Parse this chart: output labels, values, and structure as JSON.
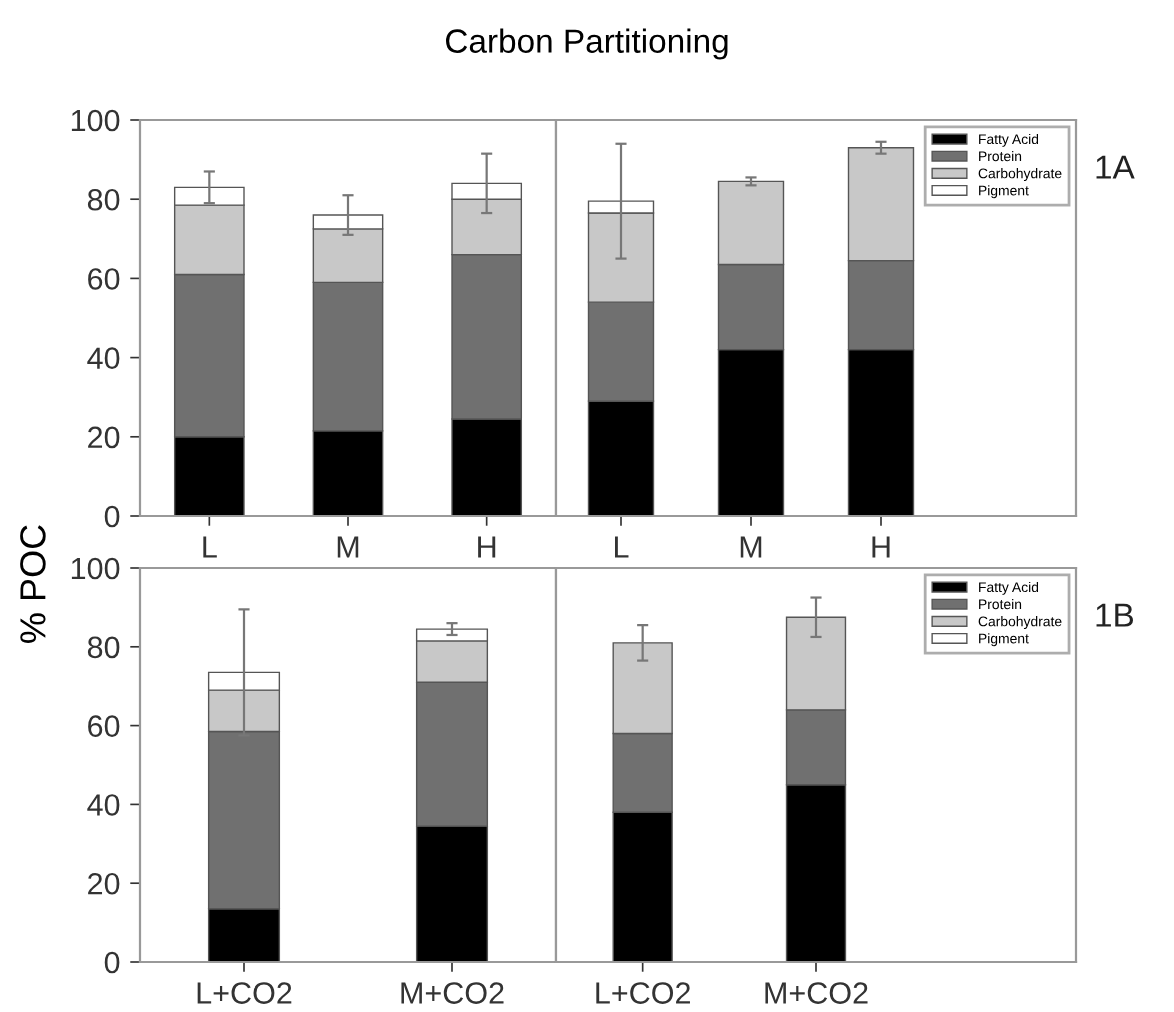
{
  "chart_data": [
    {
      "type": "bar",
      "stacked": true,
      "title": "Carbon Partitioning",
      "ylabel": "% POC",
      "categories": [
        "L",
        "M",
        "H"
      ],
      "ylim": [
        0,
        100
      ],
      "yticks": [
        0,
        20,
        40,
        60,
        80,
        100
      ],
      "grid": false,
      "legend": false,
      "series": [
        {
          "color": "#000000",
          "values": [
            20,
            21.5,
            24.5
          ]
        },
        {
          "color": "#707070",
          "values": [
            41,
            37.5,
            41.5
          ]
        },
        {
          "color": "#c8c8c8",
          "values": [
            17.5,
            13.5,
            14
          ]
        },
        {
          "color": "#ffffff",
          "values": [
            4.5,
            3.5,
            4
          ],
          "errors": [
            4,
            5,
            7.5
          ]
        }
      ]
    },
    {
      "type": "bar",
      "stacked": true,
      "categories": [
        "L",
        "M",
        "H"
      ],
      "ylim": [
        0,
        100
      ],
      "tick_labels": "x",
      "grid": false,
      "legend": "top right",
      "annotations": [
        "1A"
      ],
      "series": [
        {
          "name": "Fatty Acid",
          "color": "#000000",
          "values": [
            29,
            42,
            42
          ]
        },
        {
          "name": "Protein",
          "color": "#707070",
          "values": [
            25,
            21.5,
            22.5
          ]
        },
        {
          "name": "Carbohydrate",
          "color": "#c8c8c8",
          "values": [
            22.5,
            21,
            28.5
          ],
          "errors": [
            null,
            1,
            1.5
          ]
        },
        {
          "name": "Pigment",
          "color": "#ffffff",
          "values": [
            3,
            null,
            null
          ],
          "errors": [
            14.5,
            null,
            null
          ]
        }
      ]
    },
    {
      "type": "bar",
      "stacked": true,
      "categories": [
        "L+CO2",
        "M+CO2"
      ],
      "ylim": [
        0,
        100
      ],
      "yticks": [
        0,
        20,
        40,
        60,
        80,
        100
      ],
      "grid": false,
      "legend": false,
      "series": [
        {
          "color": "#000000",
          "values": [
            13.5,
            34.5
          ]
        },
        {
          "color": "#707070",
          "values": [
            45,
            36.5
          ]
        },
        {
          "color": "#c8c8c8",
          "values": [
            10.5,
            10.5
          ]
        },
        {
          "color": "#ffffff",
          "values": [
            4.5,
            3
          ],
          "errors": [
            16,
            1.5
          ]
        }
      ]
    },
    {
      "type": "bar",
      "stacked": true,
      "categories": [
        "L+CO2",
        "M+CO2"
      ],
      "ylim": [
        0,
        100
      ],
      "tick_labels": "x",
      "grid": false,
      "legend": "top right",
      "annotations": [
        "1B"
      ],
      "series": [
        {
          "name": "Fatty Acid",
          "color": "#000000",
          "values": [
            38,
            45
          ]
        },
        {
          "name": "Protein",
          "color": "#707070",
          "values": [
            20,
            19
          ]
        },
        {
          "name": "Carbohydrate",
          "color": "#c8c8c8",
          "values": [
            23,
            23.5
          ],
          "errors": [
            4.5,
            5
          ]
        },
        {
          "name": "Pigment",
          "color": "#ffffff",
          "values": [
            null,
            null
          ]
        }
      ]
    }
  ]
}
